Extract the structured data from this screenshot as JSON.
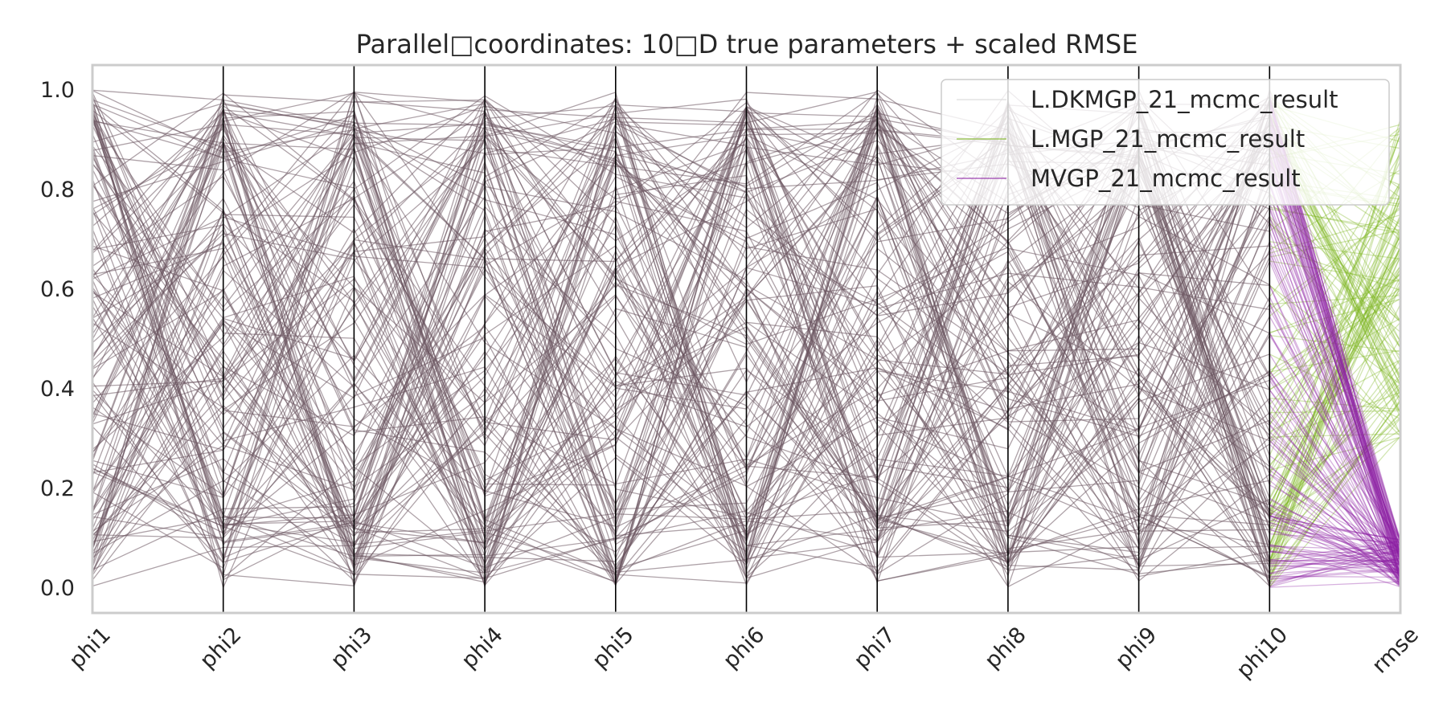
{
  "chart_data": {
    "type": "parallel-coordinates",
    "title": "Parallel□coordinates: 10□D true parameters + scaled RMSE",
    "axes": [
      "phi1",
      "phi2",
      "phi3",
      "phi4",
      "phi5",
      "phi6",
      "phi7",
      "phi8",
      "phi9",
      "phi10",
      "rmse"
    ],
    "ylim": [
      -0.05,
      1.05
    ],
    "yticks": [
      "0.0",
      "0.2",
      "0.4",
      "0.6",
      "0.8",
      "1.0"
    ],
    "grid": false,
    "legend_position": "top-right",
    "series": [
      {
        "name": "L.DKMGP_21_mcmc_result",
        "color": "#d8d8d8"
      },
      {
        "name": "L.MGP_21_mcmc_result",
        "color": "#7ab51d"
      },
      {
        "name": "MVGP_21_mcmc_result",
        "color": "#8b1fa3"
      }
    ],
    "lines_per_series": 150,
    "rmse_ranges": {
      "L.MGP_21_mcmc_result": [
        0.3,
        0.95
      ],
      "MVGP_21_mcmc_result": [
        0.0,
        0.1
      ]
    }
  },
  "colors": {
    "frame": "#cccccc",
    "axis_line": "#000000",
    "text": "#262626",
    "shared_line": "#6b5560"
  }
}
